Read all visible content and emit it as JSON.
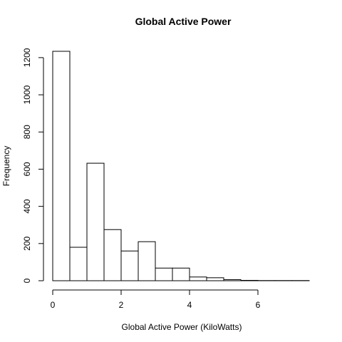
{
  "chart_data": {
    "type": "bar",
    "title": "Global Active Power",
    "xlabel": "Global Active Power (KiloWatts)",
    "ylabel": "Frequency",
    "bins": [
      {
        "start": 0.0,
        "end": 0.5,
        "count": 1234
      },
      {
        "start": 0.5,
        "end": 1.0,
        "count": 180
      },
      {
        "start": 1.0,
        "end": 1.5,
        "count": 632
      },
      {
        "start": 1.5,
        "end": 2.0,
        "count": 275
      },
      {
        "start": 2.0,
        "end": 2.5,
        "count": 160
      },
      {
        "start": 2.5,
        "end": 3.0,
        "count": 210
      },
      {
        "start": 3.0,
        "end": 3.5,
        "count": 68
      },
      {
        "start": 3.5,
        "end": 4.0,
        "count": 68
      },
      {
        "start": 4.0,
        "end": 4.5,
        "count": 20
      },
      {
        "start": 4.5,
        "end": 5.0,
        "count": 16
      },
      {
        "start": 5.0,
        "end": 5.5,
        "count": 6
      },
      {
        "start": 5.5,
        "end": 6.0,
        "count": 2
      },
      {
        "start": 6.0,
        "end": 6.5,
        "count": 1
      },
      {
        "start": 6.5,
        "end": 7.0,
        "count": 1
      },
      {
        "start": 7.0,
        "end": 7.5,
        "count": 1
      }
    ],
    "xlim": [
      0,
      7.5
    ],
    "ylim": [
      0,
      1234
    ],
    "xticks": [
      0,
      2,
      4,
      6
    ],
    "yticks": [
      0,
      200,
      400,
      600,
      800,
      1000,
      1200
    ],
    "grid": false,
    "legend": "none"
  }
}
